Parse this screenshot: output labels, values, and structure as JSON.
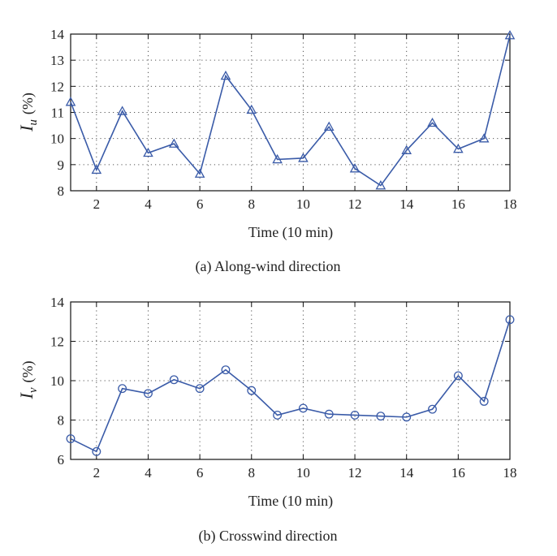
{
  "chart_data": [
    {
      "type": "line",
      "x": [
        1,
        2,
        3,
        4,
        5,
        6,
        7,
        8,
        9,
        10,
        11,
        12,
        13,
        14,
        15,
        16,
        17,
        18
      ],
      "series": [
        {
          "name": "Iu",
          "marker": "triangle",
          "values": [
            11.4,
            8.8,
            11.05,
            9.45,
            9.8,
            8.65,
            12.4,
            11.1,
            9.2,
            9.25,
            10.45,
            8.85,
            8.2,
            9.55,
            10.6,
            9.6,
            10.0,
            13.95
          ]
        }
      ],
      "xlim": [
        1,
        18
      ],
      "ylim": [
        8,
        14
      ],
      "xticks": [
        2,
        4,
        6,
        8,
        10,
        12,
        14,
        16,
        18
      ],
      "yticks": [
        8,
        9,
        10,
        11,
        12,
        13,
        14
      ],
      "xlabel": "Time (10 min)",
      "ylabel_symbol": "I",
      "ylabel_sub": "u",
      "ylabel_unit": "(%)",
      "caption": "(a)  Along-wind direction",
      "grid": true,
      "color": "#3a5ba8"
    },
    {
      "type": "line",
      "x": [
        1,
        2,
        3,
        4,
        5,
        6,
        7,
        8,
        9,
        10,
        11,
        12,
        13,
        14,
        15,
        16,
        17,
        18
      ],
      "series": [
        {
          "name": "Iv",
          "marker": "circle",
          "values": [
            7.05,
            6.4,
            9.6,
            9.35,
            10.05,
            9.6,
            10.55,
            9.5,
            8.25,
            8.6,
            8.3,
            8.25,
            8.2,
            8.15,
            8.55,
            10.25,
            8.95,
            13.1
          ]
        }
      ],
      "xlim": [
        1,
        18
      ],
      "ylim": [
        6,
        14
      ],
      "xticks": [
        2,
        4,
        6,
        8,
        10,
        12,
        14,
        16,
        18
      ],
      "yticks": [
        6,
        8,
        10,
        12,
        14
      ],
      "xlabel": "Time (10 min)",
      "ylabel_symbol": "I",
      "ylabel_sub": "v",
      "ylabel_unit": "(%)",
      "caption": "(b)  Crosswind direction",
      "grid": true,
      "color": "#3a5ba8"
    }
  ]
}
